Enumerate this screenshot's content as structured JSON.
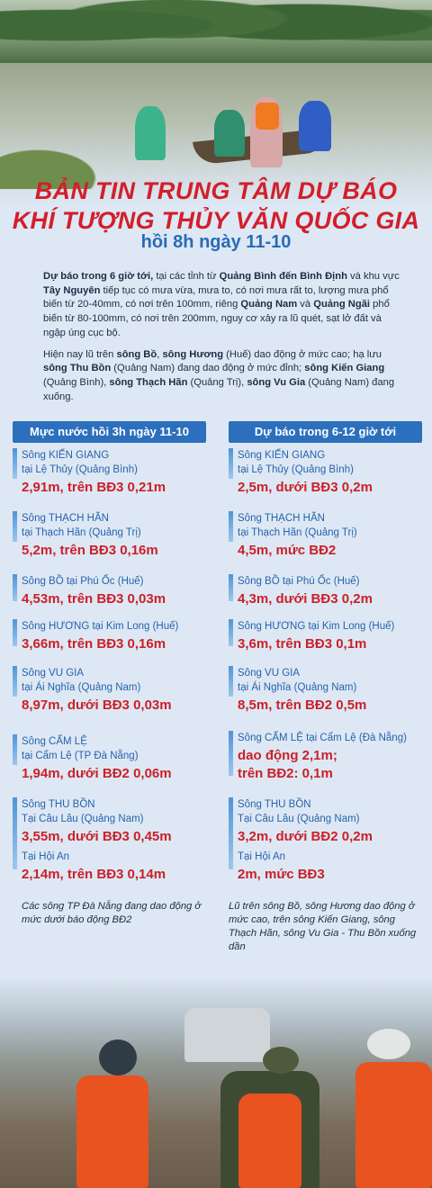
{
  "header": {
    "title_line1": "BẢN TIN TRUNG TÂM DỰ BÁO",
    "title_line2": "KHÍ TƯỢNG THỦY VĂN QUỐC GIA",
    "subtitle": "hồi 8h ngày 11-10"
  },
  "intro": {
    "p1": {
      "a": "Dự báo trong 6 giờ tới,",
      "b": " tại các tỉnh từ ",
      "c": "Quảng Bình đến Bình Định",
      "d": " và khu vực ",
      "e": "Tây Nguyên",
      "f": " tiếp  tục có mưa vừa, mưa to, có nơi mưa rất to, lượng mưa phổ biến từ 20-40mm, có nơi trên 100mm, riêng ",
      "g": "Quảng Nam",
      "h": " và ",
      "i": "Quảng Ngãi",
      "j": " phổ biến từ 80-100mm, có nơi trên 200mm, nguy cơ xảy ra lũ quét, sạt lở đất và ngập úng cục bộ."
    },
    "p2": {
      "a": "Hiện nay lũ trên ",
      "b": "sông Bồ",
      "c": ", ",
      "d": "sông Hương",
      "e": " (Huế) dao động ở mức cao; hạ lưu ",
      "f": "sông Thu Bồn",
      "g": " (Quảng Nam) đang dao động ở mức đỉnh; ",
      "h": "sông Kiến Giang",
      "i": " (Quảng Bình), ",
      "j": "sông Thạch Hãn",
      "k": " (Quảng Trị), ",
      "l": "sông Vu Gia",
      "m": " (Quảng Nam) đang xuống."
    }
  },
  "left": {
    "heading": "Mực nước hồi 3h ngày 11-10",
    "items": [
      {
        "name1": "Sông KIẾN GIANG",
        "name2": "tại Lệ Thủy (Quảng Bình)",
        "value": "2,91m, trên BĐ3 0,21m"
      },
      {
        "name1": "Sông THẠCH HÃN",
        "name2": "tại Thạch Hãn (Quảng Trị)",
        "value": "5,2m, trên BĐ3 0,16m"
      },
      {
        "name1": "Sông BỒ tại Phú Ốc (Huế)",
        "value": "4,53m, trên BĐ3 0,03m"
      },
      {
        "name1": "Sông HƯƠNG tại Kim Long (Huế)",
        "value": "3,66m, trên BĐ3 0,16m"
      },
      {
        "name1": "Sông VU GIA",
        "name2": "tại Ái Nghĩa (Quảng Nam)",
        "value": "8,97m, dưới BĐ3 0,03m"
      },
      {
        "name1": "Sông CẨM LỆ",
        "name2": "tại Cẩm Lệ (TP Đà Nẵng)",
        "value": "1,94m, dưới BĐ2 0,06m"
      },
      {
        "name1": "Sông THU BỒN",
        "name2": "Tại Câu Lâu (Quảng Nam)",
        "value": "3,55m, dưới BĐ3 0,45m",
        "name3": "Tại Hội An",
        "value2": "2,14m, trên BĐ3 0,14m"
      }
    ],
    "note": "Các sông TP Đà Nẵng đang dao động ở mức dưới báo động BĐ2"
  },
  "right": {
    "heading": "Dự báo trong 6-12 giờ tới",
    "items": [
      {
        "name1": "Sông KIẾN GIANG",
        "name2": "tại Lệ Thủy (Quảng Bình)",
        "value": "2,5m, dưới BĐ3 0,2m"
      },
      {
        "name1": "Sông THẠCH HÃN",
        "name2": "tại Thạch Hãn (Quảng Trị)",
        "value": "4,5m, mức BĐ2"
      },
      {
        "name1": "Sông BỒ tại Phú Ốc (Huế)",
        "value": "4,3m, dưới BĐ3 0,2m"
      },
      {
        "name1": "Sông HƯƠNG tại Kim Long (Huế)",
        "value": "3,6m, trên BĐ3 0,1m"
      },
      {
        "name1": "Sông VU GIA",
        "name2": "tại Ái Nghĩa (Quảng Nam)",
        "value": "8,5m, trên BĐ2 0,5m"
      },
      {
        "name1": "Sông CẨM LỆ tại Cẩm Lệ (Đà Nẵng)",
        "value": "dao động 2,1m;",
        "value2": "trên BĐ2: 0,1m"
      },
      {
        "name1": "Sông THU BỒN",
        "name2": "Tại Câu Lâu (Quảng Nam)",
        "value": "3,2m, dưới BĐ2 0,2m",
        "name3": "Tại Hội An",
        "value2": "2m, mức BĐ3"
      }
    ],
    "note": "Lũ trên sông Bồ, sông Hương dao động ở mức cao, trên sông Kiến Giang, sông Thạch Hãn, sông Vu Gia - Thu Bồn xuống dần"
  },
  "colors": {
    "title_red": "#d21f2b",
    "subtitle_blue": "#2a6bb8",
    "header_blue": "#2c6fbd",
    "value_red": "#cc1f28",
    "name_blue": "#2762ad",
    "background": "#dde8f4"
  }
}
